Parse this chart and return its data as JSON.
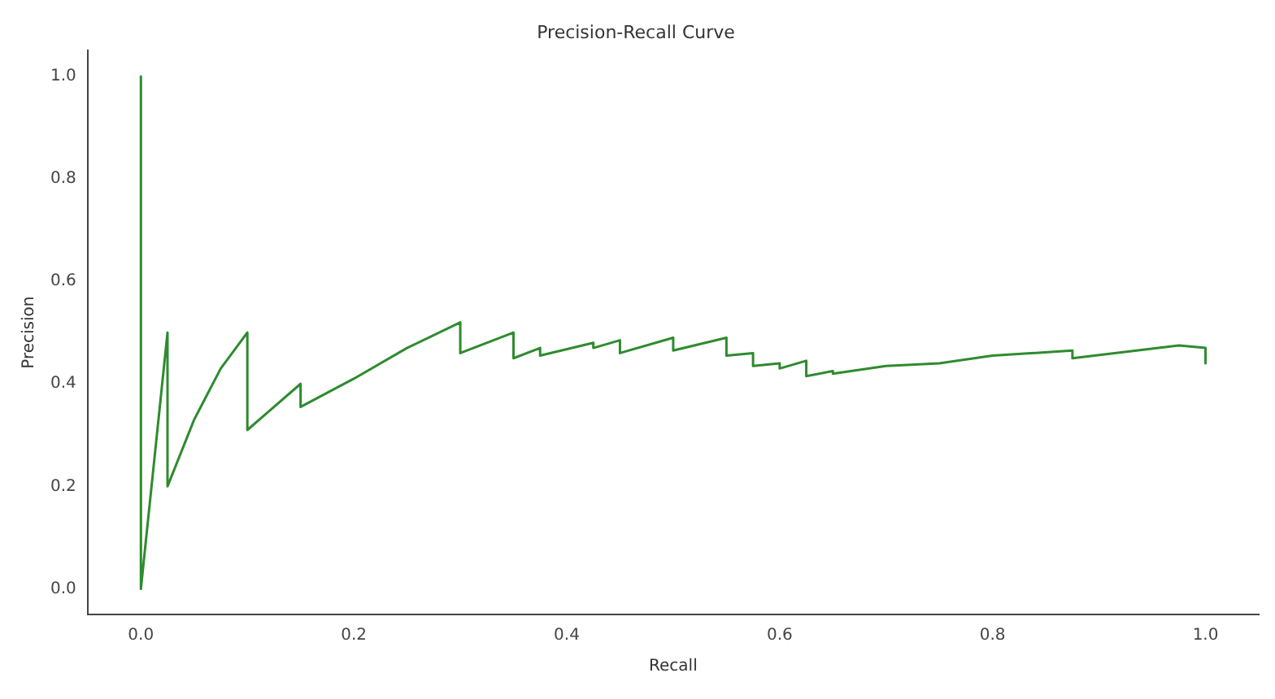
{
  "chart_data": {
    "type": "line",
    "title": "Precision-Recall Curve",
    "xlabel": "Recall",
    "ylabel": "Precision",
    "x": [
      0,
      0,
      0.025,
      0.025,
      0.05,
      0.075,
      0.1,
      0.1,
      0.15,
      0.15,
      0.2,
      0.25,
      0.3,
      0.3,
      0.35,
      0.35,
      0.375,
      0.375,
      0.425,
      0.425,
      0.45,
      0.45,
      0.5,
      0.5,
      0.55,
      0.55,
      0.575,
      0.575,
      0.6,
      0.6,
      0.625,
      0.625,
      0.65,
      0.65,
      0.7,
      0.75,
      0.8,
      0.875,
      0.875,
      0.975,
      1.0,
      1.0
    ],
    "series": [
      {
        "color": "#2e8b2e",
        "values": [
          1.0,
          0.0,
          0.5,
          0.2,
          0.33,
          0.43,
          0.5,
          0.31,
          0.4,
          0.355,
          0.41,
          0.47,
          0.52,
          0.46,
          0.5,
          0.45,
          0.47,
          0.455,
          0.48,
          0.47,
          0.485,
          0.46,
          0.49,
          0.465,
          0.49,
          0.455,
          0.46,
          0.435,
          0.44,
          0.43,
          0.445,
          0.415,
          0.425,
          0.42,
          0.435,
          0.44,
          0.455,
          0.465,
          0.45,
          0.475,
          0.47,
          0.44
        ]
      }
    ],
    "xlim": [
      -0.05,
      1.05
    ],
    "ylim": [
      -0.05,
      1.05
    ],
    "xticks": [
      {
        "value": 0,
        "label": "0.0"
      },
      {
        "value": 0.2,
        "label": "0.2"
      },
      {
        "value": 0.4,
        "label": "0.4"
      },
      {
        "value": 0.6,
        "label": "0.6"
      },
      {
        "value": 0.8,
        "label": "0.8"
      },
      {
        "value": 1,
        "label": "1.0"
      }
    ],
    "yticks": [
      {
        "value": 0,
        "label": "0.0"
      },
      {
        "value": 0.2,
        "label": "0.2"
      },
      {
        "value": 0.4,
        "label": "0.4"
      },
      {
        "value": 0.6,
        "label": "0.6"
      },
      {
        "value": 0.8,
        "label": "0.8"
      },
      {
        "value": 1,
        "label": "1.0"
      }
    ],
    "grid": false,
    "legend": false,
    "marker": "none",
    "line_style": "solid"
  }
}
